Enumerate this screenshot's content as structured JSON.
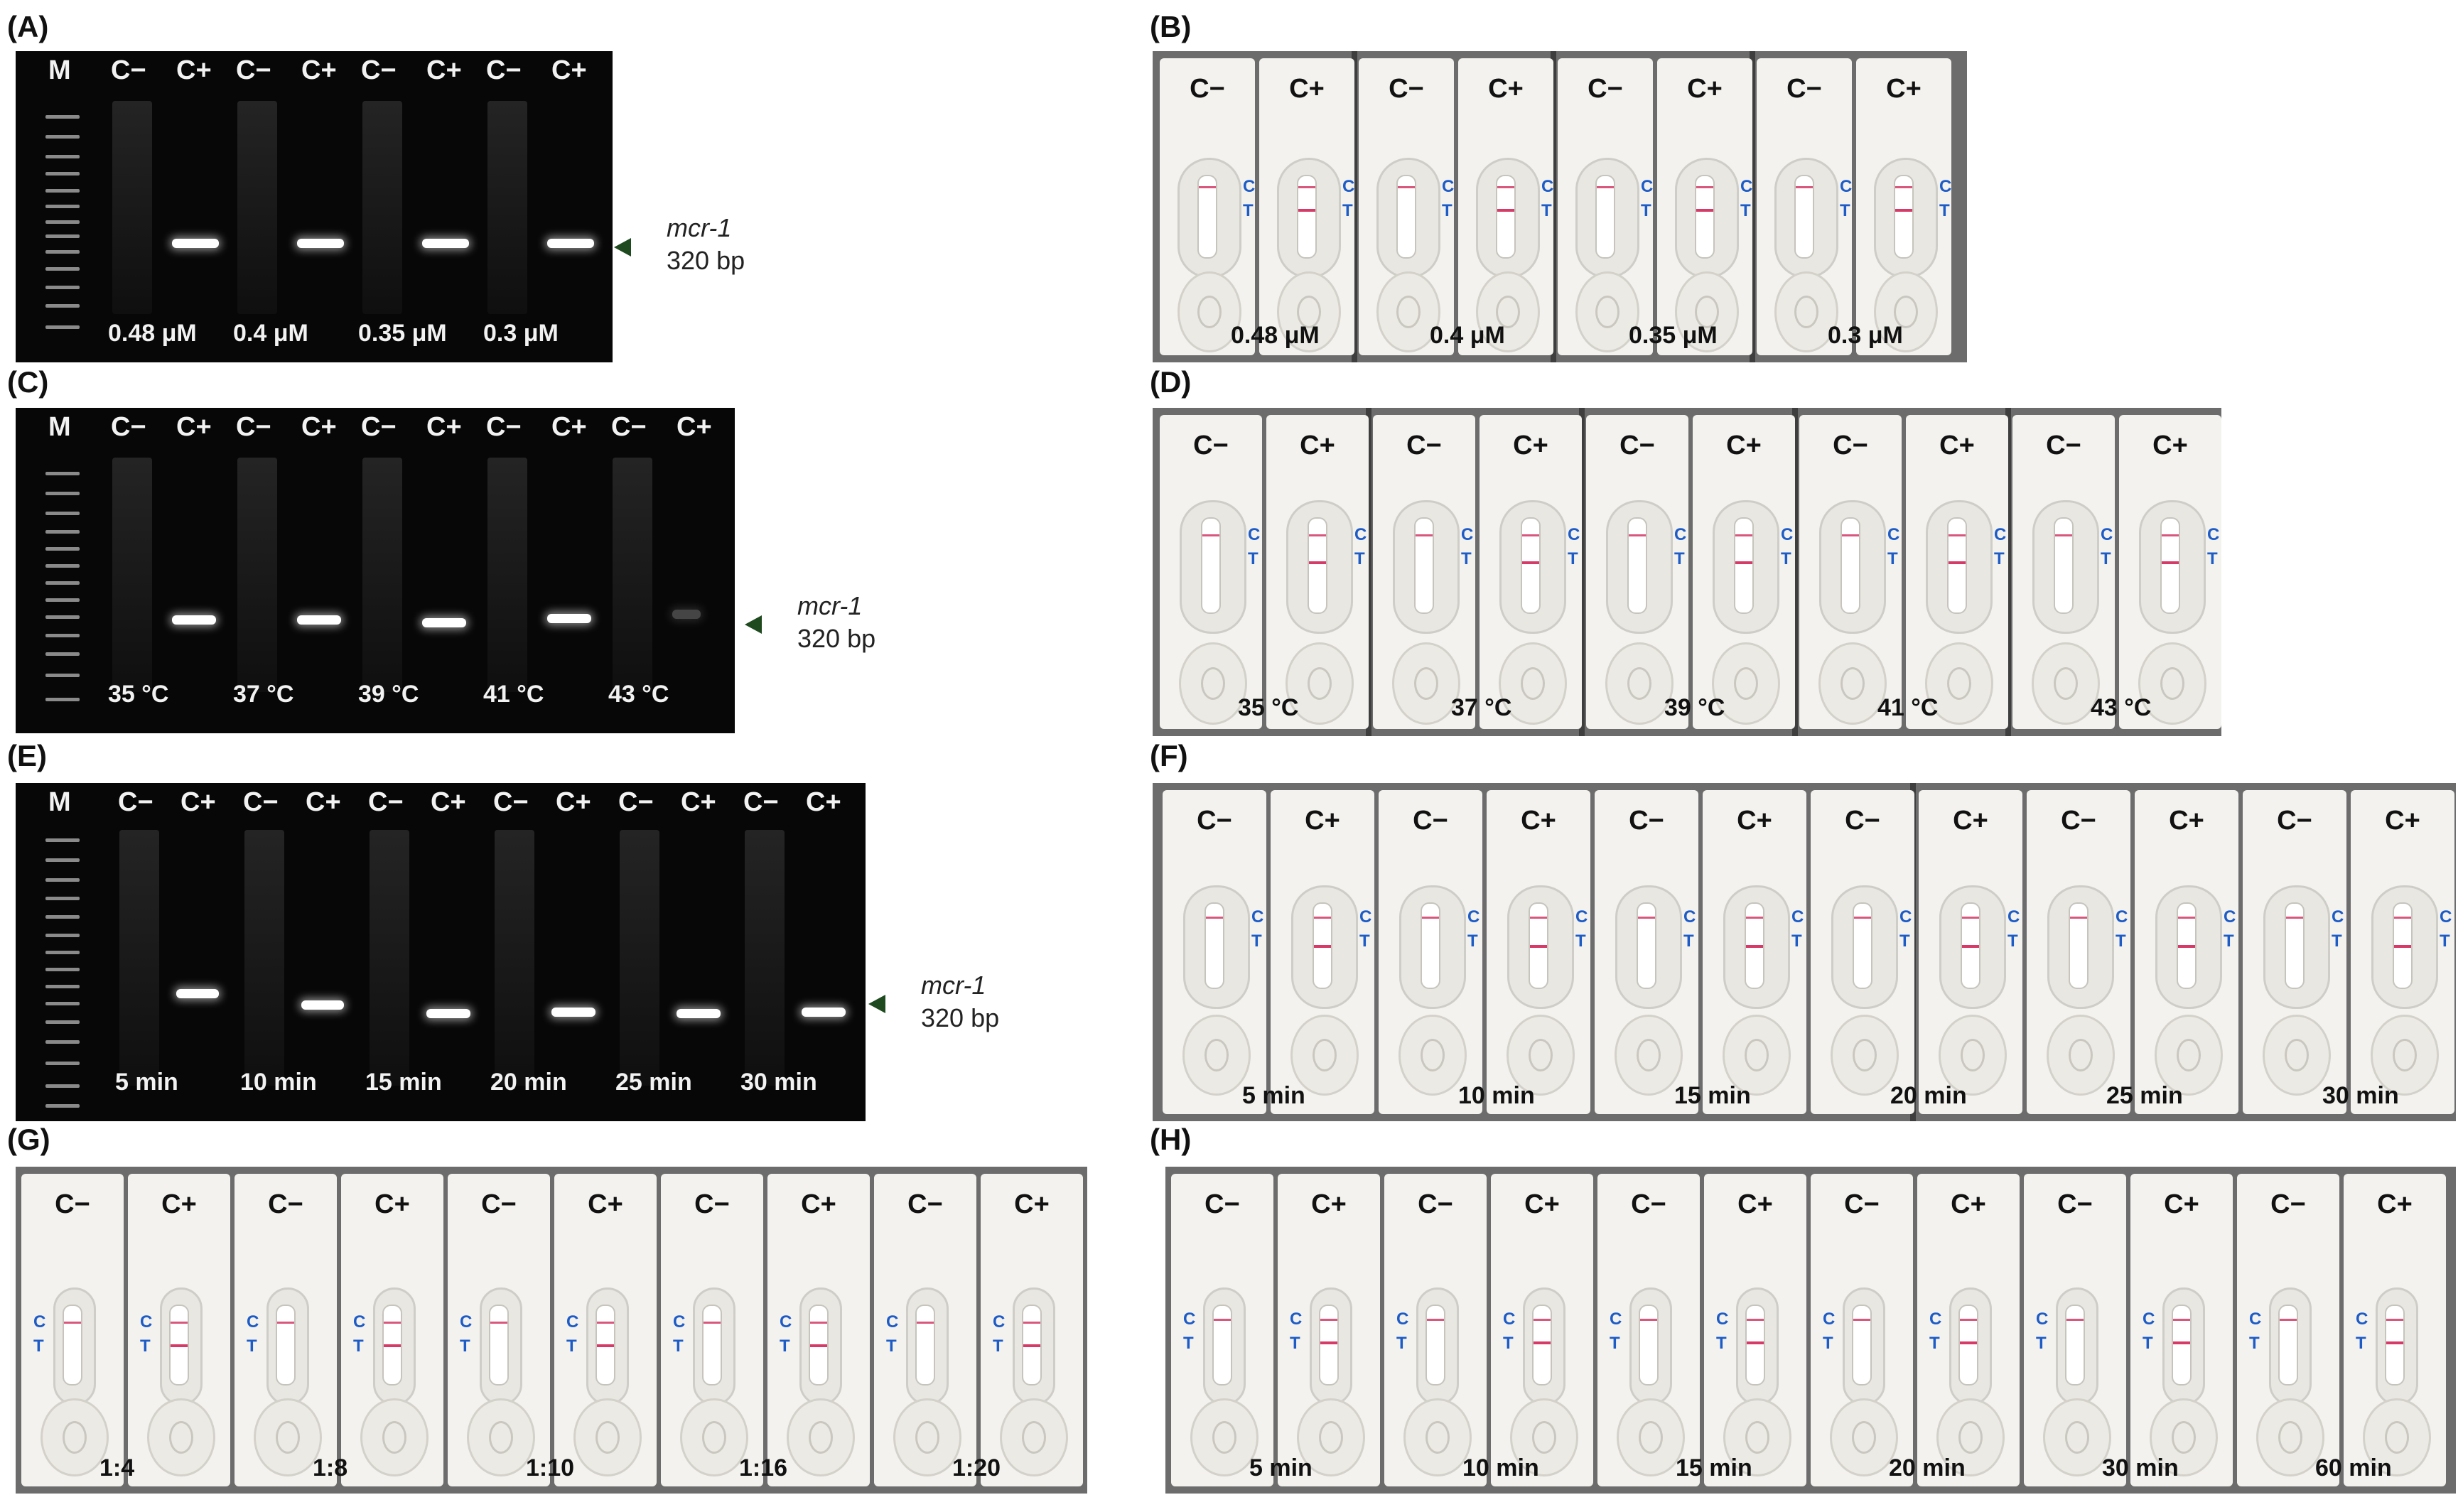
{
  "panels": {
    "A": {
      "letter": "(A)",
      "lane_ladder": "M",
      "lane_neg": "C−",
      "lane_pos": "C+",
      "conditions": [
        "0.48 μM",
        "0.4 μM",
        "0.35 μM",
        "0.3 μM"
      ],
      "marker_gene": "mcr-1",
      "marker_size": "320 bp"
    },
    "B": {
      "letter": "(B)",
      "lane_neg": "C−",
      "lane_pos": "C+",
      "ct_c": "C",
      "ct_t": "T",
      "conditions": [
        "0.48 μM",
        "0.4 μM",
        "0.35 μM",
        "0.3 μM"
      ]
    },
    "C": {
      "letter": "(C)",
      "lane_ladder": "M",
      "lane_neg": "C−",
      "lane_pos": "C+",
      "conditions": [
        "35 °C",
        "37 °C",
        "39 °C",
        "41 °C",
        "43 °C"
      ],
      "marker_gene": "mcr-1",
      "marker_size": "320 bp"
    },
    "D": {
      "letter": "(D)",
      "lane_neg": "C−",
      "lane_pos": "C+",
      "ct_c": "C",
      "ct_t": "T",
      "conditions": [
        "35 °C",
        "37 °C",
        "39 °C",
        "41 °C",
        "43 °C"
      ]
    },
    "E": {
      "letter": "(E)",
      "lane_ladder": "M",
      "lane_neg": "C−",
      "lane_pos": "C+",
      "conditions": [
        "5 min",
        "10 min",
        "15 min",
        "20 min",
        "25 min",
        "30 min"
      ],
      "marker_gene": "mcr-1",
      "marker_size": "320 bp"
    },
    "F": {
      "letter": "(F)",
      "lane_neg": "C−",
      "lane_pos": "C+",
      "ct_c": "C",
      "ct_t": "T",
      "conditions": [
        "5 min",
        "10 min",
        "15 min",
        "20 min",
        "25 min",
        "30 min"
      ]
    },
    "G": {
      "letter": "(G)",
      "lane_neg": "C−",
      "lane_pos": "C+",
      "ct_c": "C",
      "ct_t": "T",
      "conditions": [
        "1:4",
        "1:8",
        "1:10",
        "1:16",
        "1:20"
      ]
    },
    "H": {
      "letter": "(H)",
      "lane_neg": "C−",
      "lane_pos": "C+",
      "ct_c": "C",
      "ct_t": "T",
      "conditions": [
        "5 min",
        "10 min",
        "15 min",
        "20 min",
        "30 min",
        "60 min"
      ]
    }
  },
  "colors": {
    "gel_bg": "#070707",
    "test_line": "#d63a66",
    "ct_label": "#1d5bc7",
    "arrow": "#1f4a1f"
  }
}
